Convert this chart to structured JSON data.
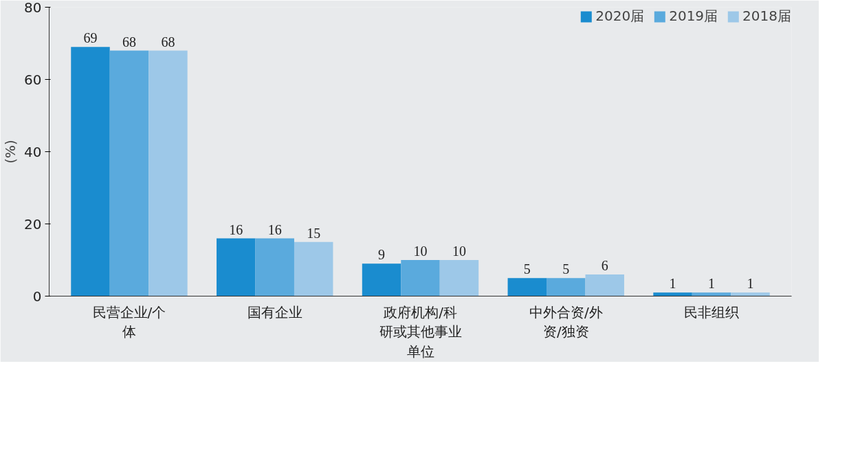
{
  "chart_data": {
    "type": "bar",
    "ylabel": "(%)",
    "categories": [
      "民营企业/个体",
      "国有企业",
      "政府机构/科研或其他事业单位",
      "中外合资/外资/独资",
      "民非组织"
    ],
    "series": [
      {
        "name": "2020届",
        "color": "#1a8ccf",
        "values": [
          69,
          16,
          9,
          5,
          1
        ]
      },
      {
        "name": "2019届",
        "color": "#5aaadd",
        "values": [
          68,
          16,
          10,
          5,
          1
        ]
      },
      {
        "name": "2018届",
        "color": "#9dc8e8",
        "values": [
          68,
          15,
          10,
          6,
          1
        ]
      }
    ],
    "ylim": [
      0,
      80
    ],
    "yticks": [
      0,
      20,
      40,
      60,
      80
    ],
    "grid": false,
    "legend": "top right",
    "data_labels": true
  }
}
